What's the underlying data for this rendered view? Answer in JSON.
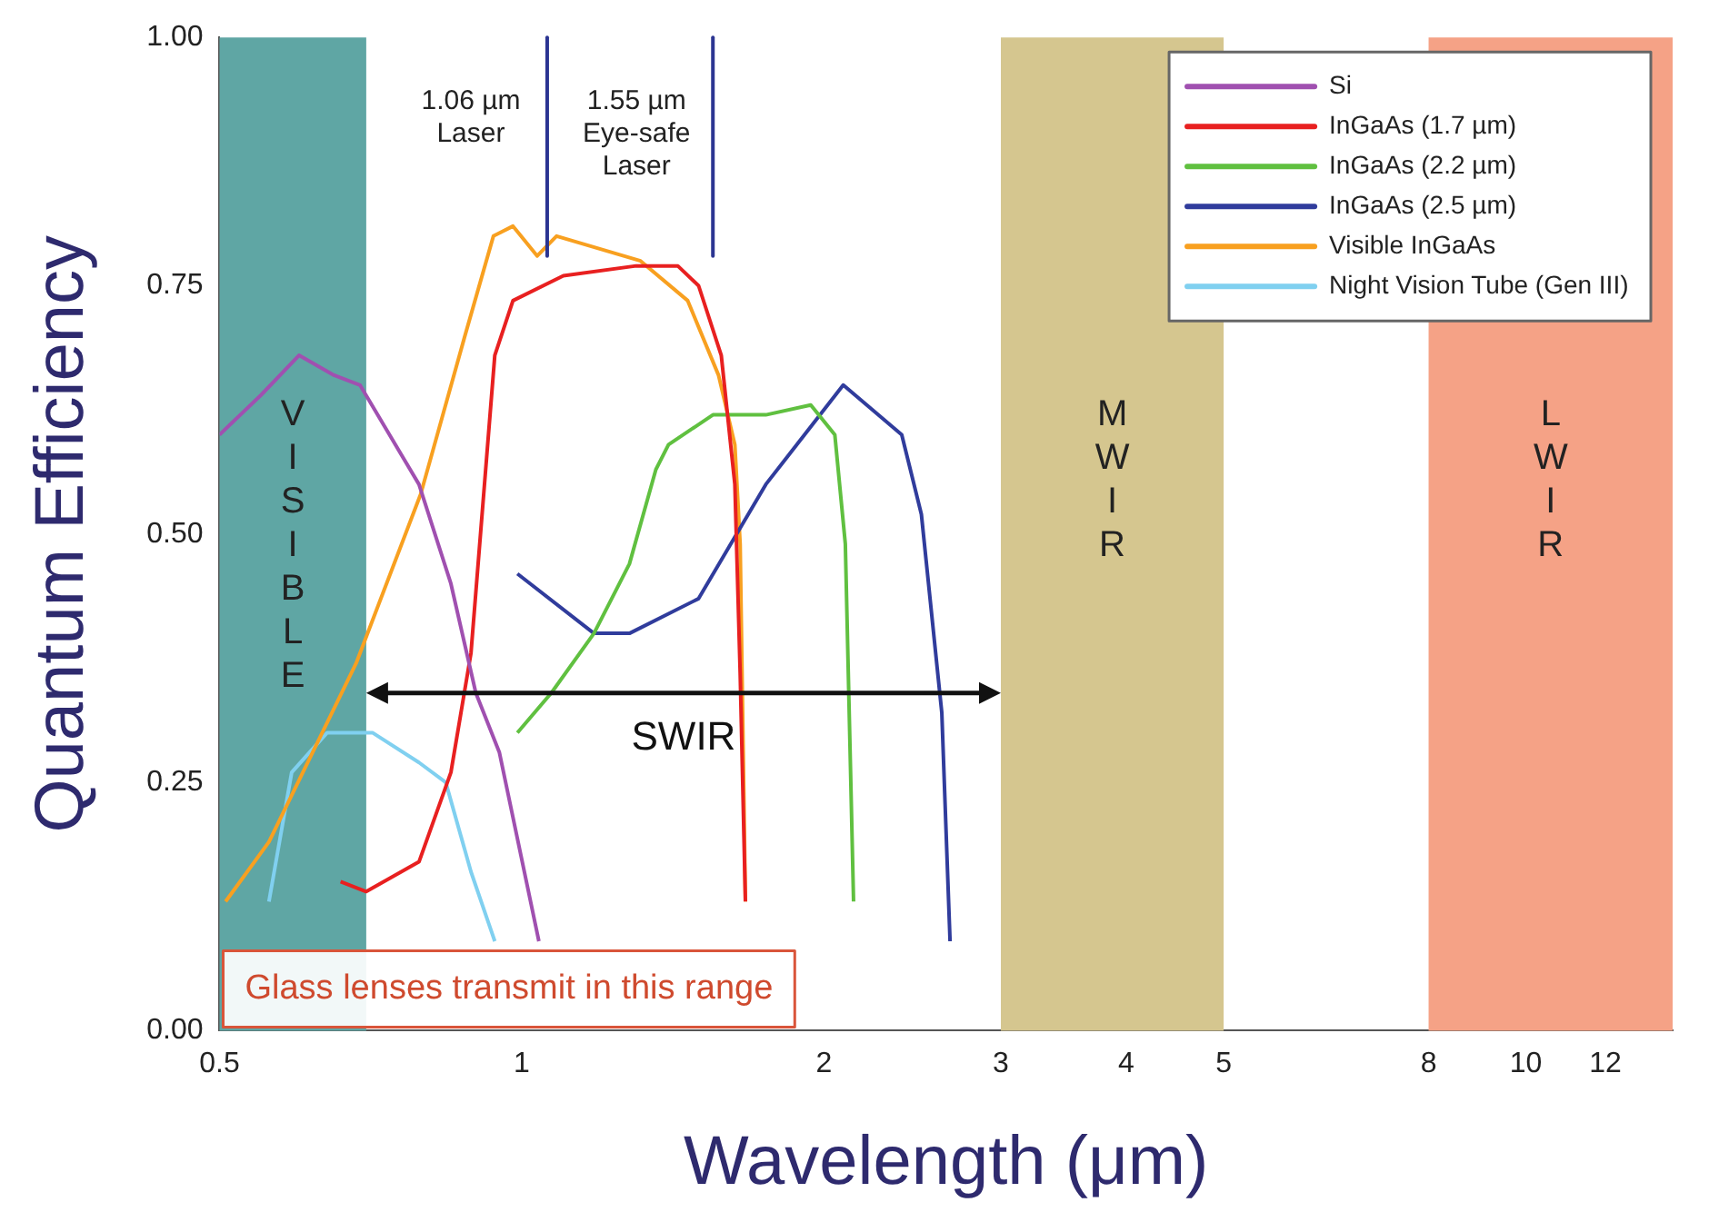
{
  "chart_data": {
    "type": "line",
    "xlabel": "Wavelength (μm)",
    "ylabel": "Quantum Efficiency",
    "log": "x",
    "xlim": [
      0.5,
      14
    ],
    "xticks": [
      0.5,
      1,
      2,
      3,
      4,
      5,
      8,
      10,
      12
    ],
    "ylim": [
      0,
      1
    ],
    "yticks": [
      {
        "value": 0,
        "label": "0.00"
      },
      {
        "value": 0.25,
        "label": "0.25"
      },
      {
        "value": 0.5,
        "label": "0.50"
      },
      {
        "value": 0.75,
        "label": "0.75"
      },
      {
        "value": 1,
        "label": "1.00"
      }
    ],
    "grid": false,
    "legend": "top right",
    "marker": "none",
    "line_style": "solid",
    "series": [
      {
        "name": "Si",
        "color": "#a050b0",
        "x": [
          0.5,
          0.55,
          0.6,
          0.65,
          0.69,
          0.79,
          0.85,
          0.9,
          0.95,
          1.04
        ],
        "values": [
          0.6,
          0.64,
          0.68,
          0.66,
          0.65,
          0.55,
          0.45,
          0.34,
          0.28,
          0.09
        ]
      },
      {
        "name": "InGaAs (1.7 µm)",
        "color": "#e82020",
        "x": [
          0.66,
          0.7,
          0.79,
          0.85,
          0.89,
          0.94,
          0.98,
          1.1,
          1.3,
          1.43,
          1.5,
          1.58,
          1.63,
          1.65,
          1.67
        ],
        "values": [
          0.15,
          0.14,
          0.17,
          0.26,
          0.38,
          0.68,
          0.735,
          0.76,
          0.77,
          0.77,
          0.75,
          0.68,
          0.55,
          0.36,
          0.13
        ]
      },
      {
        "name": "InGaAs (2.2 µm)",
        "color": "#60c040",
        "x": [
          0.99,
          1.07,
          1.18,
          1.28,
          1.36,
          1.4,
          1.55,
          1.75,
          1.94,
          2.05,
          2.1,
          2.14
        ],
        "values": [
          0.3,
          0.34,
          0.4,
          0.47,
          0.565,
          0.59,
          0.62,
          0.62,
          0.63,
          0.6,
          0.49,
          0.13
        ]
      },
      {
        "name": "InGaAs (2.5 µm)",
        "color": "#303c9c",
        "x": [
          0.99,
          1.18,
          1.28,
          1.5,
          1.75,
          2.09,
          2.39,
          2.5,
          2.62,
          2.67
        ],
        "values": [
          0.46,
          0.4,
          0.4,
          0.435,
          0.55,
          0.65,
          0.6,
          0.52,
          0.32,
          0.09
        ]
      },
      {
        "name": "Visible InGaAs",
        "color": "#f8a020",
        "x": [
          0.507,
          0.56,
          0.684,
          0.793,
          0.878,
          0.937,
          0.98,
          1.036,
          1.083,
          1.313,
          1.463,
          1.57,
          1.63,
          1.65,
          1.67
        ],
        "values": [
          0.13,
          0.19,
          0.37,
          0.54,
          0.7,
          0.8,
          0.81,
          0.78,
          0.8,
          0.775,
          0.735,
          0.66,
          0.59,
          0.49,
          0.13
        ]
      },
      {
        "name": "Night Vision Tube (Gen III)",
        "color": "#80d0f0",
        "x": [
          0.56,
          0.59,
          0.64,
          0.71,
          0.79,
          0.84,
          0.89,
          0.94
        ],
        "values": [
          0.13,
          0.26,
          0.3,
          0.3,
          0.27,
          0.25,
          0.16,
          0.09
        ]
      }
    ],
    "bands": [
      {
        "axis": "x",
        "from": 0.5,
        "to": 0.7,
        "label": "VISIBLE",
        "color": "#5fa6a4"
      },
      {
        "axis": "x",
        "from": 3,
        "to": 5,
        "label": "MWIR",
        "color": "#d5c68f"
      },
      {
        "axis": "x",
        "from": 8,
        "to": 14,
        "label": "LWIR",
        "color": "#f5a286"
      }
    ],
    "ref_lines": [
      {
        "axis": "x",
        "value": 1.06,
        "label": "1.06 µm\nLaser",
        "color": "#2c3592"
      },
      {
        "axis": "x",
        "value": 1.55,
        "label": "1.55 µm\nEye-safe\nLaser",
        "color": "#2c3592"
      }
    ],
    "annotations": [
      "SWIR",
      "Glass lenses transmit in this range"
    ]
  }
}
